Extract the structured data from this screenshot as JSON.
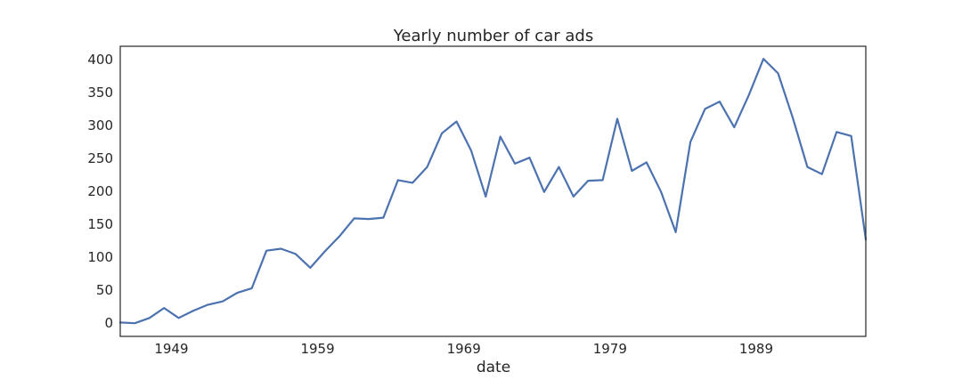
{
  "chart_data": {
    "type": "line",
    "title": "Yearly number of car ads",
    "xlabel": "date",
    "ylabel": "",
    "xlim": [
      1945.5,
      1996.5
    ],
    "ylim": [
      -20,
      420
    ],
    "xticks": [
      1949,
      1959,
      1969,
      1979,
      1989
    ],
    "yticks": [
      0,
      50,
      100,
      150,
      200,
      250,
      300,
      350,
      400
    ],
    "grid": false,
    "legend": "none",
    "line_color": "#4c72b0",
    "series": [
      {
        "x": [
          1945.5,
          1946.5,
          1947.5,
          1948.5,
          1949.5,
          1950.5,
          1951.5,
          1952.5,
          1953.5,
          1954.5,
          1955.5,
          1956.5,
          1957.5,
          1958.5,
          1959.5,
          1960.5,
          1961.5,
          1962.5,
          1963.5,
          1964.5,
          1965.5,
          1966.5,
          1967.5,
          1968.5,
          1969.5,
          1970.5,
          1971.5,
          1972.5,
          1973.5,
          1974.5,
          1975.5,
          1976.5,
          1977.5,
          1978.5,
          1979.5,
          1980.5,
          1981.5,
          1982.5,
          1983.5,
          1984.5,
          1985.5,
          1986.5,
          1987.5,
          1988.5,
          1989.5,
          1990.5,
          1991.5,
          1992.5,
          1993.5,
          1994.5,
          1995.5,
          1996.5
        ],
        "y": [
          1,
          0,
          8,
          23,
          8,
          19,
          28,
          33,
          46,
          53,
          110,
          113,
          105,
          84,
          109,
          132,
          159,
          158,
          160,
          217,
          213,
          237,
          288,
          306,
          262,
          192,
          283,
          242,
          251,
          199,
          237,
          192,
          216,
          217,
          310,
          231,
          244,
          199,
          138,
          275,
          325,
          336,
          297,
          346,
          401,
          379,
          312,
          237,
          226,
          290,
          284,
          127
        ]
      }
    ]
  }
}
